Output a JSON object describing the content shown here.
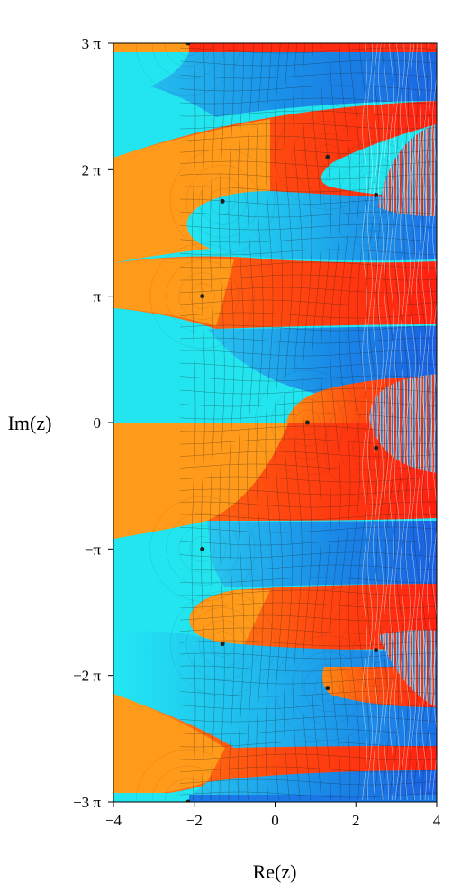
{
  "plot": {
    "x_axis": {
      "label": "Re(z)",
      "range": [
        -4,
        4
      ],
      "ticks": [
        {
          "value": -4,
          "label": "−4"
        },
        {
          "value": -2,
          "label": "−2"
        },
        {
          "value": 0,
          "label": "0"
        },
        {
          "value": 2,
          "label": "2"
        },
        {
          "value": 4,
          "label": "4"
        }
      ]
    },
    "y_axis": {
      "label": "Im(z)",
      "range_in_pi": [
        -3,
        3
      ],
      "ticks": [
        {
          "value_in_pi": 3,
          "label": "3 π"
        },
        {
          "value_in_pi": 2,
          "label": "2 π"
        },
        {
          "value_in_pi": 1,
          "label": "π"
        },
        {
          "value_in_pi": 0,
          "label": "0"
        },
        {
          "value_in_pi": -1,
          "label": "−π"
        },
        {
          "value_in_pi": -2,
          "label": "−2 π"
        },
        {
          "value_in_pi": -3,
          "label": "−3 π"
        }
      ]
    },
    "colors": {
      "orange": "#ff9a1a",
      "cyan": "#22e5f0",
      "red": "#ff2a10",
      "blue": "#1a78e8",
      "gray": "#b0b0b0"
    },
    "critical_points": [
      {
        "re": -2.15,
        "im_in_pi": 3
      },
      {
        "re": -1.8,
        "im_in_pi": 1
      },
      {
        "re": -1.3,
        "im_in_pi": 1.75
      },
      {
        "re": 1.3,
        "im_in_pi": 2.1
      },
      {
        "re": 2.5,
        "im_in_pi": 1.8
      },
      {
        "re": 0.8,
        "im_in_pi": 0
      },
      {
        "re": 2.5,
        "im_in_pi": -0.2
      },
      {
        "re": -1.8,
        "im_in_pi": -1
      },
      {
        "re": -1.3,
        "im_in_pi": -1.75
      },
      {
        "re": 1.3,
        "im_in_pi": -2.1
      },
      {
        "re": 2.5,
        "im_in_pi": -1.8
      },
      {
        "re": -2.15,
        "im_in_pi": -3
      }
    ]
  }
}
